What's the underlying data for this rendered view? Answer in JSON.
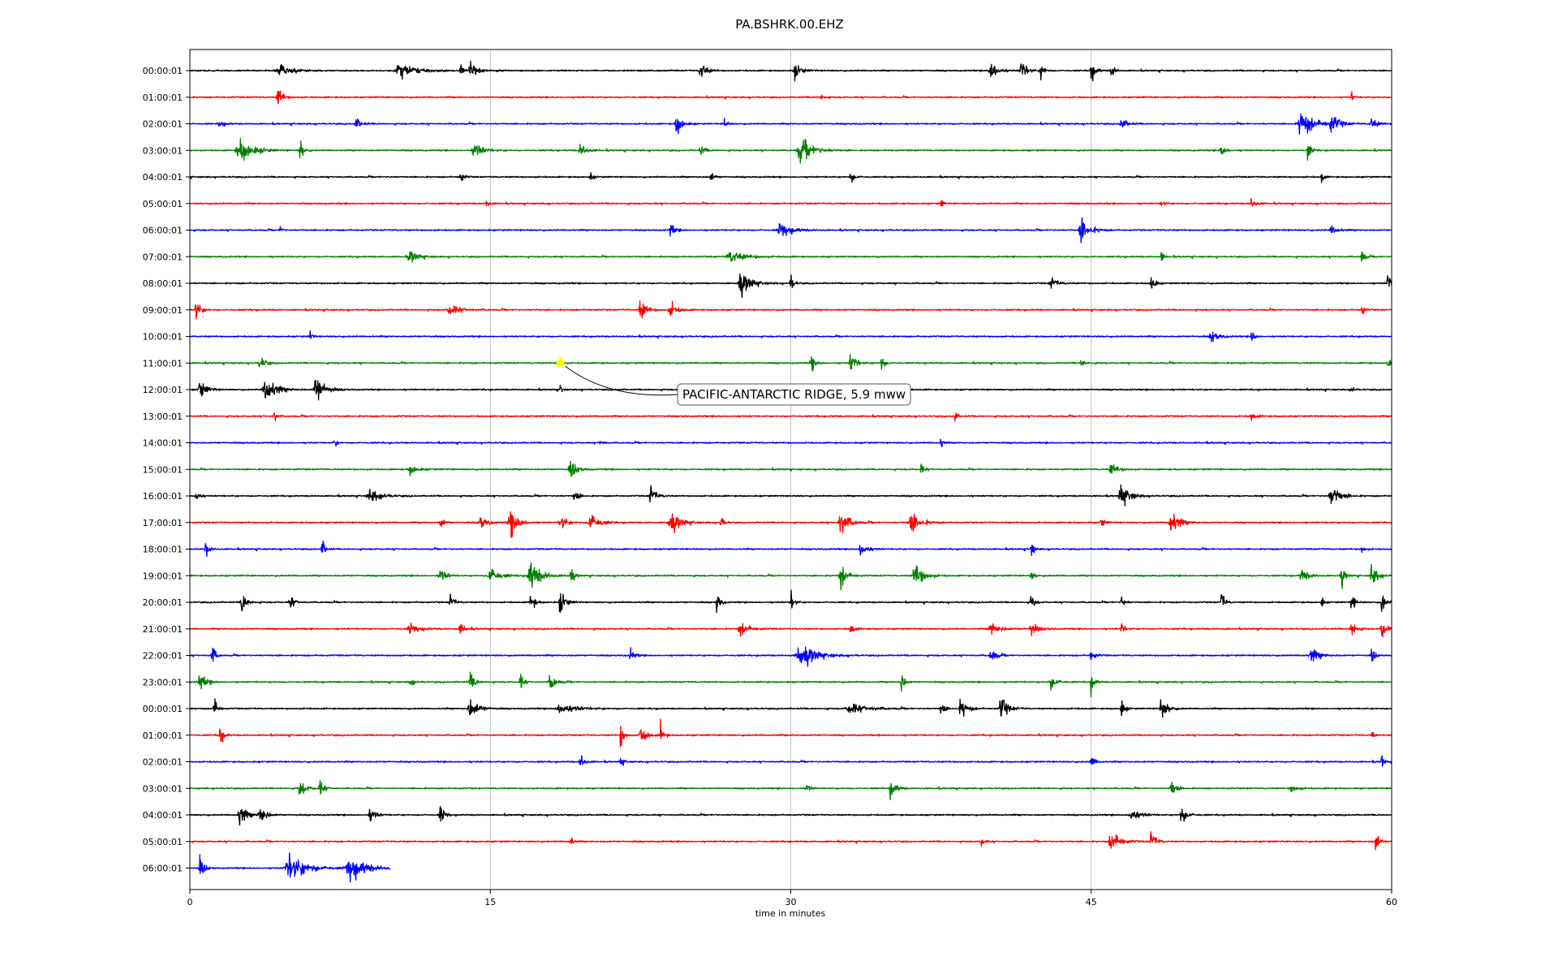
{
  "chart_data": {
    "type": "line",
    "title": "PA.BSHRK.00.EHZ",
    "xlabel": "time in minutes",
    "ylabel": "",
    "xlim": [
      0,
      60
    ],
    "xticks": [
      "0",
      "15",
      "30",
      "45",
      "60"
    ],
    "x_tick_values": [
      0,
      15,
      30,
      45,
      60
    ],
    "grid_x": true,
    "line_colors": [
      "#000000",
      "#ff0000",
      "#0000ff",
      "#008000"
    ],
    "annotation_marker_color": "#ffff00",
    "rows": [
      {
        "label": "00:00:01",
        "events": [
          [
            4.5,
            0.45,
            1.2
          ],
          [
            10.5,
            0.55,
            1.5
          ],
          [
            14,
            0.7,
            0.5
          ],
          [
            13.5,
            0.5,
            0.3
          ],
          [
            25.5,
            0.6,
            0.6
          ],
          [
            30.2,
            0.5,
            0.6
          ],
          [
            40,
            0.8,
            0.6
          ],
          [
            41.5,
            0.8,
            0.5
          ],
          [
            42.5,
            0.7,
            0.3
          ],
          [
            45,
            0.8,
            0.4
          ],
          [
            46,
            0.6,
            0.3
          ]
        ]
      },
      {
        "label": "01:00:01",
        "events": [
          [
            4.4,
            0.9,
            0.4
          ],
          [
            31.5,
            0.3,
            0.3
          ],
          [
            58,
            0.4,
            0.2
          ]
        ]
      },
      {
        "label": "02:00:01",
        "events": [
          [
            1.5,
            0.3,
            0.4
          ],
          [
            8.3,
            0.4,
            0.5
          ],
          [
            24.3,
            0.9,
            0.5
          ],
          [
            26.7,
            0.6,
            0.2
          ],
          [
            46.5,
            0.4,
            0.6
          ],
          [
            55.5,
            1.0,
            1.2
          ],
          [
            57,
            0.6,
            0.8
          ],
          [
            59,
            0.4,
            0.6
          ]
        ]
      },
      {
        "label": "03:00:01",
        "events": [
          [
            2.5,
            0.9,
            1.2
          ],
          [
            5.5,
            0.9,
            0.3
          ],
          [
            14.2,
            0.6,
            0.8
          ],
          [
            19.5,
            0.4,
            0.6
          ],
          [
            30.5,
            0.9,
            1.2
          ],
          [
            25.5,
            0.4,
            0.4
          ],
          [
            51.5,
            0.4,
            0.5
          ],
          [
            55.8,
            0.8,
            0.3
          ]
        ]
      },
      {
        "label": "04:00:01",
        "events": [
          [
            13.5,
            0.5,
            0.3
          ],
          [
            20,
            0.5,
            0.2
          ],
          [
            26,
            0.4,
            0.3
          ],
          [
            33,
            0.4,
            0.4
          ],
          [
            56.5,
            0.6,
            0.2
          ]
        ]
      },
      {
        "label": "05:00:01",
        "events": [
          [
            14.8,
            0.3,
            0.3
          ],
          [
            37.5,
            0.4,
            0.2
          ],
          [
            48.5,
            0.3,
            0.3
          ],
          [
            53,
            0.3,
            0.5
          ]
        ]
      },
      {
        "label": "06:00:01",
        "events": [
          [
            4.5,
            0.4,
            0.2
          ],
          [
            24,
            0.5,
            0.4
          ],
          [
            29.5,
            0.6,
            1.0
          ],
          [
            44.5,
            0.9,
            0.8
          ],
          [
            57,
            0.3,
            0.6
          ]
        ]
      },
      {
        "label": "07:00:01",
        "events": [
          [
            11,
            0.4,
            0.8
          ],
          [
            27,
            0.4,
            1.5
          ],
          [
            48.5,
            0.5,
            0.2
          ],
          [
            58.5,
            0.6,
            0.3
          ]
        ]
      },
      {
        "label": "08:00:01",
        "events": [
          [
            27.5,
            0.8,
            1.0
          ],
          [
            30,
            0.7,
            0.3
          ],
          [
            43,
            0.4,
            0.6
          ],
          [
            48,
            0.9,
            0.3
          ],
          [
            59.8,
            0.9,
            0.3
          ]
        ]
      },
      {
        "label": "09:00:01",
        "events": [
          [
            0.3,
            0.8,
            0.4
          ],
          [
            13,
            0.4,
            1.0
          ],
          [
            22.5,
            0.8,
            0.6
          ],
          [
            24,
            0.6,
            0.6
          ],
          [
            58.5,
            0.7,
            0.2
          ]
        ]
      },
      {
        "label": "10:00:01",
        "events": [
          [
            6,
            0.4,
            0.2
          ],
          [
            51,
            0.5,
            0.6
          ],
          [
            53,
            0.5,
            0.3
          ]
        ]
      },
      {
        "label": "11:00:01",
        "events": [
          [
            3.5,
            0.5,
            0.5
          ],
          [
            31,
            0.6,
            0.4
          ],
          [
            33,
            0.8,
            0.5
          ],
          [
            34.5,
            0.7,
            0.3
          ],
          [
            44.5,
            0.4,
            0.3
          ],
          [
            59.8,
            0.4,
            0.3
          ]
        ]
      },
      {
        "label": "12:00:01",
        "events": [
          [
            0.5,
            0.7,
            0.6
          ],
          [
            3.8,
            0.9,
            1.0
          ],
          [
            6.3,
            1.0,
            0.8
          ],
          [
            18.5,
            0.4,
            0.2
          ],
          [
            58,
            0.3,
            0.2
          ]
        ]
      },
      {
        "label": "13:00:01",
        "events": [
          [
            4.2,
            0.6,
            0.2
          ],
          [
            38.2,
            0.5,
            0.2
          ],
          [
            53,
            0.3,
            0.4
          ]
        ]
      },
      {
        "label": "14:00:01",
        "events": [
          [
            7.2,
            0.5,
            0.2
          ],
          [
            20.5,
            0.3,
            0.3
          ],
          [
            37.5,
            0.5,
            0.2
          ]
        ]
      },
      {
        "label": "15:00:01",
        "events": [
          [
            11,
            0.4,
            0.6
          ],
          [
            19,
            0.7,
            0.6
          ],
          [
            36.5,
            0.4,
            0.3
          ],
          [
            46,
            0.5,
            0.6
          ]
        ]
      },
      {
        "label": "16:00:01",
        "events": [
          [
            0.3,
            0.6,
            0.3
          ],
          [
            9,
            0.5,
            1.0
          ],
          [
            19.2,
            0.5,
            0.4
          ],
          [
            23,
            0.7,
            0.5
          ],
          [
            46.5,
            0.9,
            0.8
          ],
          [
            57,
            0.9,
            0.8
          ]
        ]
      },
      {
        "label": "17:00:01",
        "events": [
          [
            12.5,
            0.6,
            0.3
          ],
          [
            14.5,
            0.5,
            0.6
          ],
          [
            16,
            0.9,
            0.8
          ],
          [
            18.5,
            0.7,
            0.5
          ],
          [
            20,
            0.8,
            0.8
          ],
          [
            24,
            0.8,
            0.9
          ],
          [
            26.5,
            0.5,
            0.3
          ],
          [
            32.5,
            0.9,
            0.8
          ],
          [
            36,
            0.8,
            0.9
          ],
          [
            49,
            0.8,
            0.8
          ],
          [
            45.5,
            0.4,
            0.3
          ]
        ]
      },
      {
        "label": "18:00:01",
        "events": [
          [
            0.8,
            0.6,
            0.3
          ],
          [
            6.6,
            0.7,
            0.3
          ],
          [
            33.5,
            0.6,
            0.6
          ],
          [
            42,
            0.6,
            0.3
          ],
          [
            58.5,
            0.3,
            0.3
          ]
        ]
      },
      {
        "label": "19:00:01",
        "events": [
          [
            12.5,
            0.6,
            0.5
          ],
          [
            15,
            0.7,
            0.8
          ],
          [
            17,
            1.0,
            1.0
          ],
          [
            19,
            0.7,
            0.3
          ],
          [
            32.5,
            1.0,
            0.5
          ],
          [
            36.2,
            1.0,
            0.8
          ],
          [
            42,
            0.4,
            0.3
          ],
          [
            55.5,
            0.5,
            0.6
          ],
          [
            57.5,
            0.8,
            0.3
          ],
          [
            59,
            0.9,
            0.5
          ]
        ]
      },
      {
        "label": "20:00:01",
        "events": [
          [
            2.6,
            0.8,
            0.5
          ],
          [
            5,
            0.6,
            0.4
          ],
          [
            13,
            0.5,
            0.4
          ],
          [
            17,
            0.7,
            0.4
          ],
          [
            18.5,
            0.8,
            0.5
          ],
          [
            26.3,
            0.9,
            0.3
          ],
          [
            30,
            0.8,
            0.3
          ],
          [
            42,
            0.6,
            0.3
          ],
          [
            46.5,
            0.6,
            0.3
          ],
          [
            51.5,
            0.8,
            0.3
          ],
          [
            56.5,
            0.5,
            0.2
          ],
          [
            58,
            0.8,
            0.3
          ],
          [
            59.5,
            0.9,
            0.3
          ]
        ]
      },
      {
        "label": "21:00:01",
        "events": [
          [
            11,
            0.4,
            0.8
          ],
          [
            13.5,
            0.4,
            0.5
          ],
          [
            27.5,
            0.5,
            0.8
          ],
          [
            33,
            0.5,
            0.3
          ],
          [
            40,
            0.5,
            0.8
          ],
          [
            42,
            0.5,
            0.6
          ],
          [
            46.5,
            0.5,
            0.3
          ],
          [
            58,
            0.9,
            0.4
          ],
          [
            59.5,
            0.9,
            0.4
          ]
        ]
      },
      {
        "label": "22:00:01",
        "events": [
          [
            1.1,
            0.9,
            0.3
          ],
          [
            22,
            0.4,
            0.4
          ],
          [
            30.5,
            0.9,
            1.4
          ],
          [
            40,
            0.6,
            0.5
          ],
          [
            45,
            0.4,
            0.4
          ],
          [
            56,
            0.5,
            0.8
          ],
          [
            59,
            0.6,
            0.3
          ]
        ]
      },
      {
        "label": "23:00:01",
        "events": [
          [
            0.5,
            0.6,
            0.6
          ],
          [
            11,
            0.4,
            0.3
          ],
          [
            14,
            0.6,
            0.5
          ],
          [
            16.5,
            0.7,
            0.3
          ],
          [
            18,
            0.7,
            0.5
          ],
          [
            35.5,
            0.9,
            0.3
          ],
          [
            43,
            0.5,
            0.6
          ],
          [
            45,
            0.8,
            0.3
          ]
        ]
      },
      {
        "label": "00:00:01",
        "events": [
          [
            1.2,
            0.9,
            0.3
          ],
          [
            14,
            0.7,
            0.8
          ],
          [
            18.5,
            0.4,
            1.5
          ],
          [
            33,
            0.4,
            1.6
          ],
          [
            37.5,
            0.7,
            0.3
          ],
          [
            38.5,
            0.7,
            0.6
          ],
          [
            40.5,
            0.9,
            0.6
          ],
          [
            46.5,
            0.7,
            0.3
          ],
          [
            48.5,
            0.8,
            0.6
          ]
        ]
      },
      {
        "label": "01:00:01",
        "events": [
          [
            1.5,
            0.9,
            0.3
          ],
          [
            21.5,
            1.0,
            0.3
          ],
          [
            22.5,
            0.9,
            0.5
          ],
          [
            23.5,
            0.9,
            0.3
          ],
          [
            59,
            0.4,
            0.2
          ]
        ]
      },
      {
        "label": "02:00:01",
        "events": [
          [
            19.5,
            0.5,
            0.4
          ],
          [
            21.5,
            0.4,
            0.3
          ],
          [
            45,
            0.6,
            0.3
          ],
          [
            59.5,
            0.6,
            0.2
          ]
        ]
      },
      {
        "label": "03:00:01",
        "events": [
          [
            5.5,
            0.6,
            0.6
          ],
          [
            6.5,
            0.6,
            0.4
          ],
          [
            30.8,
            0.4,
            0.3
          ],
          [
            35,
            0.7,
            0.5
          ],
          [
            49,
            0.8,
            0.4
          ],
          [
            55,
            0.3,
            0.6
          ]
        ]
      },
      {
        "label": "04:00:01",
        "events": [
          [
            2.5,
            0.8,
            0.6
          ],
          [
            3.5,
            0.9,
            0.5
          ],
          [
            9,
            0.6,
            0.5
          ],
          [
            12.5,
            0.7,
            0.4
          ],
          [
            47,
            0.5,
            0.8
          ],
          [
            49.5,
            0.6,
            0.6
          ]
        ]
      },
      {
        "label": "05:00:01",
        "events": [
          [
            19,
            0.5,
            0.2
          ],
          [
            39.5,
            0.4,
            0.3
          ],
          [
            46,
            0.8,
            0.8
          ],
          [
            48,
            0.8,
            0.4
          ],
          [
            59.2,
            0.9,
            0.3
          ]
        ]
      },
      {
        "label": "06:00:01",
        "events": [
          [
            0.5,
            0.8,
            0.4
          ],
          [
            5,
            0.9,
            1.7
          ],
          [
            8,
            0.9,
            1.5
          ]
        ],
        "end": 10
      }
    ],
    "annotation": {
      "row": 11,
      "x": 18.5,
      "text": "PACIFIC-ANTARCTIC RIDGE, 5.9 mww"
    }
  }
}
